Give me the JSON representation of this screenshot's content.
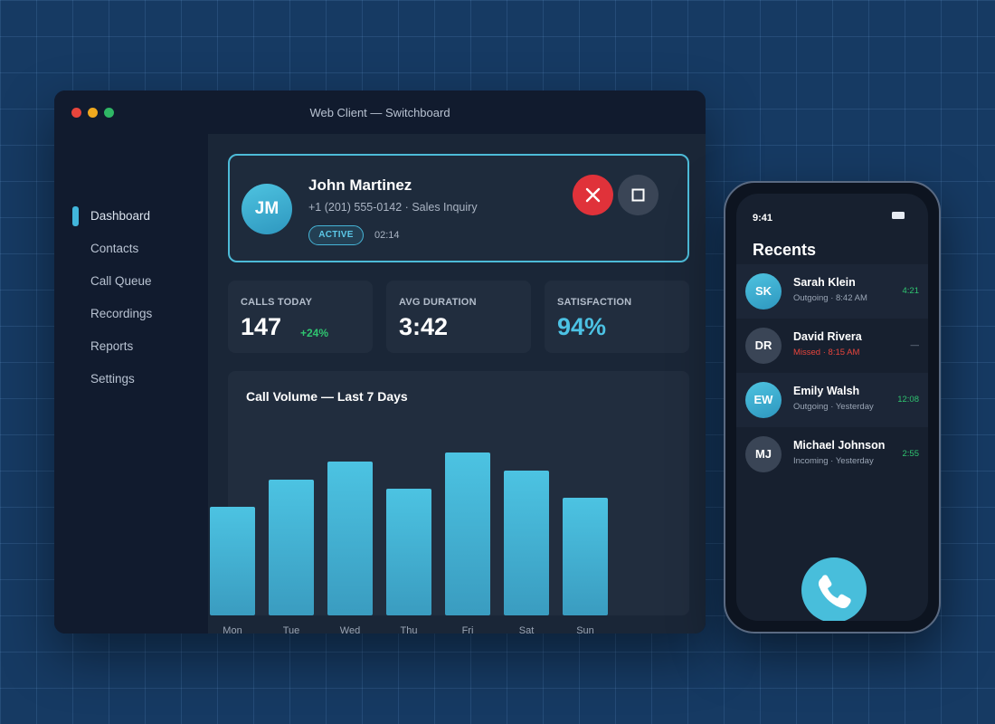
{
  "window": {
    "title": "Web Client — Switchboard"
  },
  "sidebar": {
    "items": [
      {
        "label": "Dashboard",
        "active": true
      },
      {
        "label": "Contacts"
      },
      {
        "label": "Call Queue"
      },
      {
        "label": "Recordings"
      },
      {
        "label": "Reports"
      },
      {
        "label": "Settings"
      }
    ]
  },
  "active_call": {
    "initials": "JM",
    "name": "John Martinez",
    "info": "+1 (201) 555-0142 · Sales Inquiry",
    "status": "ACTIVE",
    "timer": "02:14",
    "end_icon": "close-icon",
    "stop_icon": "stop-icon"
  },
  "stats": [
    {
      "label": "CALLS TODAY",
      "value": "147",
      "delta": "+24%"
    },
    {
      "label": "AVG DURATION",
      "value": "3:42"
    },
    {
      "label": "SATISFACTION",
      "value": "94%"
    }
  ],
  "chart_data": {
    "type": "bar",
    "title": "Call Volume — Last 7 Days",
    "categories": [
      "Mon",
      "Tue",
      "Wed",
      "Thu",
      "Fri",
      "Sat",
      "Sun"
    ],
    "values": [
      60,
      75,
      85,
      70,
      90,
      80,
      65
    ],
    "ylim": [
      0,
      100
    ],
    "grid": false,
    "color": "#46b8db"
  },
  "phone": {
    "time": "9:41",
    "title": "Recents",
    "recents": [
      {
        "initials": "SK",
        "name": "Sarah Klein",
        "sub": "Outgoing · 8:42 AM",
        "duration": "4:21",
        "avatar": "blue"
      },
      {
        "initials": "DR",
        "name": "David Rivera",
        "sub": "Missed · 8:15 AM",
        "duration": "—",
        "avatar": "gray",
        "missed": true
      },
      {
        "initials": "EW",
        "name": "Emily Walsh",
        "sub": "Outgoing · Yesterday",
        "duration": "12:08",
        "avatar": "blue"
      },
      {
        "initials": "MJ",
        "name": "Michael Johnson",
        "sub": "Incoming · Yesterday",
        "duration": "2:55",
        "avatar": "gray"
      }
    ],
    "dial_icon": "phone-icon"
  },
  "colors": {
    "accent": "#46b8db",
    "danger": "#e0323a",
    "success": "#2fc470",
    "background": "#163a63"
  }
}
